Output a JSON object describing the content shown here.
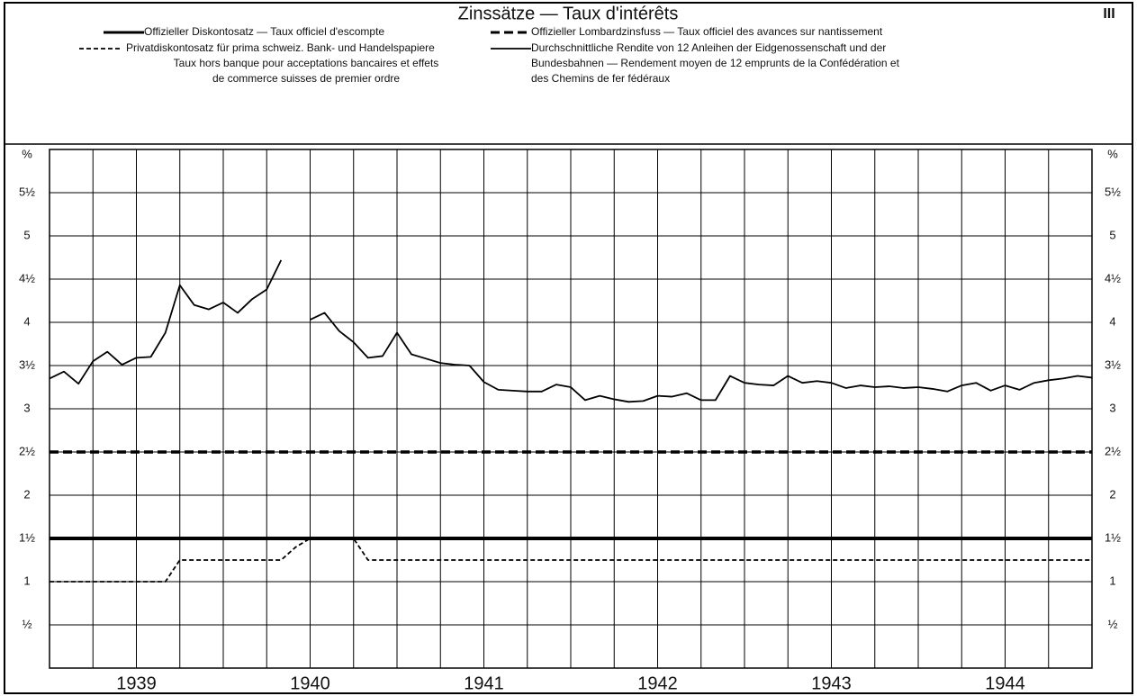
{
  "chart_data": {
    "type": "line",
    "title": "Zinssätze — Taux d'intérêts",
    "plate": "III",
    "y_unit": "%",
    "xlim": [
      1939,
      1945
    ],
    "ylim": [
      0,
      6
    ],
    "xticks": [
      {
        "value": 1939.5,
        "label": "1939"
      },
      {
        "value": 1940.5,
        "label": "1940"
      },
      {
        "value": 1941.5,
        "label": "1941"
      },
      {
        "value": 1942.5,
        "label": "1942"
      },
      {
        "value": 1943.5,
        "label": "1943"
      },
      {
        "value": 1944.5,
        "label": "1944"
      }
    ],
    "xgrid": [
      1939,
      1939.25,
      1939.5,
      1939.75,
      1940,
      1940.25,
      1940.5,
      1940.75,
      1941,
      1941.25,
      1941.5,
      1941.75,
      1942,
      1942.25,
      1942.5,
      1942.75,
      1943,
      1943.25,
      1943.5,
      1943.75,
      1944,
      1944.25,
      1944.5,
      1944.75,
      1945
    ],
    "yticks": [
      {
        "value": 0.5,
        "label": "½"
      },
      1,
      {
        "value": 1.5,
        "label": "1½"
      },
      2,
      {
        "value": 2.5,
        "label": "2½"
      },
      3,
      {
        "value": 3.5,
        "label": "3½"
      },
      4,
      {
        "value": 4.5,
        "label": "4½"
      },
      5,
      {
        "value": 5.5,
        "label": "5½"
      }
    ],
    "grid": true,
    "series": [
      {
        "name": [
          "Offizieller Diskontosatz — Taux officiel d'escompte"
        ],
        "color": "#000000",
        "width": 4,
        "dash": "none",
        "x": [
          1939,
          1945
        ],
        "values": [
          1.5,
          1.5
        ]
      },
      {
        "name": [
          "Offizieller Lombardzinsfuss — Taux officiel des avances sur nantissement"
        ],
        "color": "#000000",
        "width": 3.5,
        "dash": "10 5",
        "x": [
          1939,
          1945
        ],
        "values": [
          2.5,
          2.5
        ]
      },
      {
        "name": [
          "Privatdiskontosatz für prima schweiz. Bank- und Handelspapiere",
          "Taux hors banque pour acceptations bancaires et effets",
          "de commerce suisses de premier ordre"
        ],
        "color": "#000000",
        "width": 1.8,
        "dash": "5 3",
        "x": [
          1939,
          1939.667,
          1939.75,
          1940.333,
          1940.417,
          1940.5,
          1940.75,
          1940.833,
          1945
        ],
        "values": [
          1,
          1,
          1.25,
          1.25,
          1.4,
          1.5,
          1.5,
          1.25,
          1.25
        ]
      },
      {
        "name": [
          "Durchschnittliche Rendite von 12 Anleihen der Eidgenossenschaft und der",
          "Bundesbahnen — Rendement moyen de 12 emprunts de la Confédération et",
          "des Chemins de fer fédéraux"
        ],
        "color": "#000000",
        "width": 1.8,
        "dash": "none",
        "x": [
          1939,
          1939.083,
          1939.167,
          1939.25,
          1939.333,
          1939.417,
          1939.5,
          1939.583,
          1939.667,
          1939.75,
          1939.833,
          1939.917,
          1940,
          1940.083,
          1940.167,
          1940.25,
          1940.333,
          1940.417,
          1940.5,
          1940.583,
          1940.667,
          1940.75,
          1940.833,
          1940.917,
          1941,
          1941.083,
          1941.167,
          1941.25,
          1941.333,
          1941.417,
          1941.5,
          1941.583,
          1941.667,
          1941.75,
          1941.833,
          1941.917,
          1942,
          1942.083,
          1942.167,
          1942.25,
          1942.333,
          1942.417,
          1942.5,
          1942.583,
          1942.667,
          1942.75,
          1942.833,
          1942.917,
          1943,
          1943.083,
          1943.167,
          1943.25,
          1943.333,
          1943.417,
          1943.5,
          1943.583,
          1943.667,
          1943.75,
          1943.833,
          1943.917,
          1944,
          1944.083,
          1944.167,
          1944.25,
          1944.333,
          1944.417,
          1944.5,
          1944.583,
          1944.667,
          1944.75,
          1944.833,
          1944.917,
          1945
        ],
        "values": [
          3.35,
          3.43,
          3.29,
          3.55,
          3.66,
          3.51,
          3.59,
          3.6,
          3.88,
          4.43,
          4.2,
          4.15,
          4.23,
          4.11,
          4.27,
          4.38,
          4.72,
          null,
          4.03,
          4.11,
          3.9,
          3.77,
          3.59,
          3.61,
          3.88,
          3.63,
          3.58,
          3.53,
          3.51,
          3.5,
          3.31,
          3.22,
          3.21,
          3.2,
          3.2,
          3.28,
          3.25,
          3.1,
          3.15,
          3.11,
          3.08,
          3.09,
          3.15,
          3.14,
          3.18,
          3.1,
          3.1,
          3.38,
          3.3,
          3.28,
          3.27,
          3.38,
          3.3,
          3.32,
          3.3,
          3.24,
          3.27,
          3.25,
          3.26,
          3.24,
          3.25,
          3.23,
          3.2,
          3.27,
          3.3,
          3.21,
          3.27,
          3.22,
          3.3,
          3.33,
          3.35,
          3.38,
          3.36
        ]
      }
    ]
  }
}
